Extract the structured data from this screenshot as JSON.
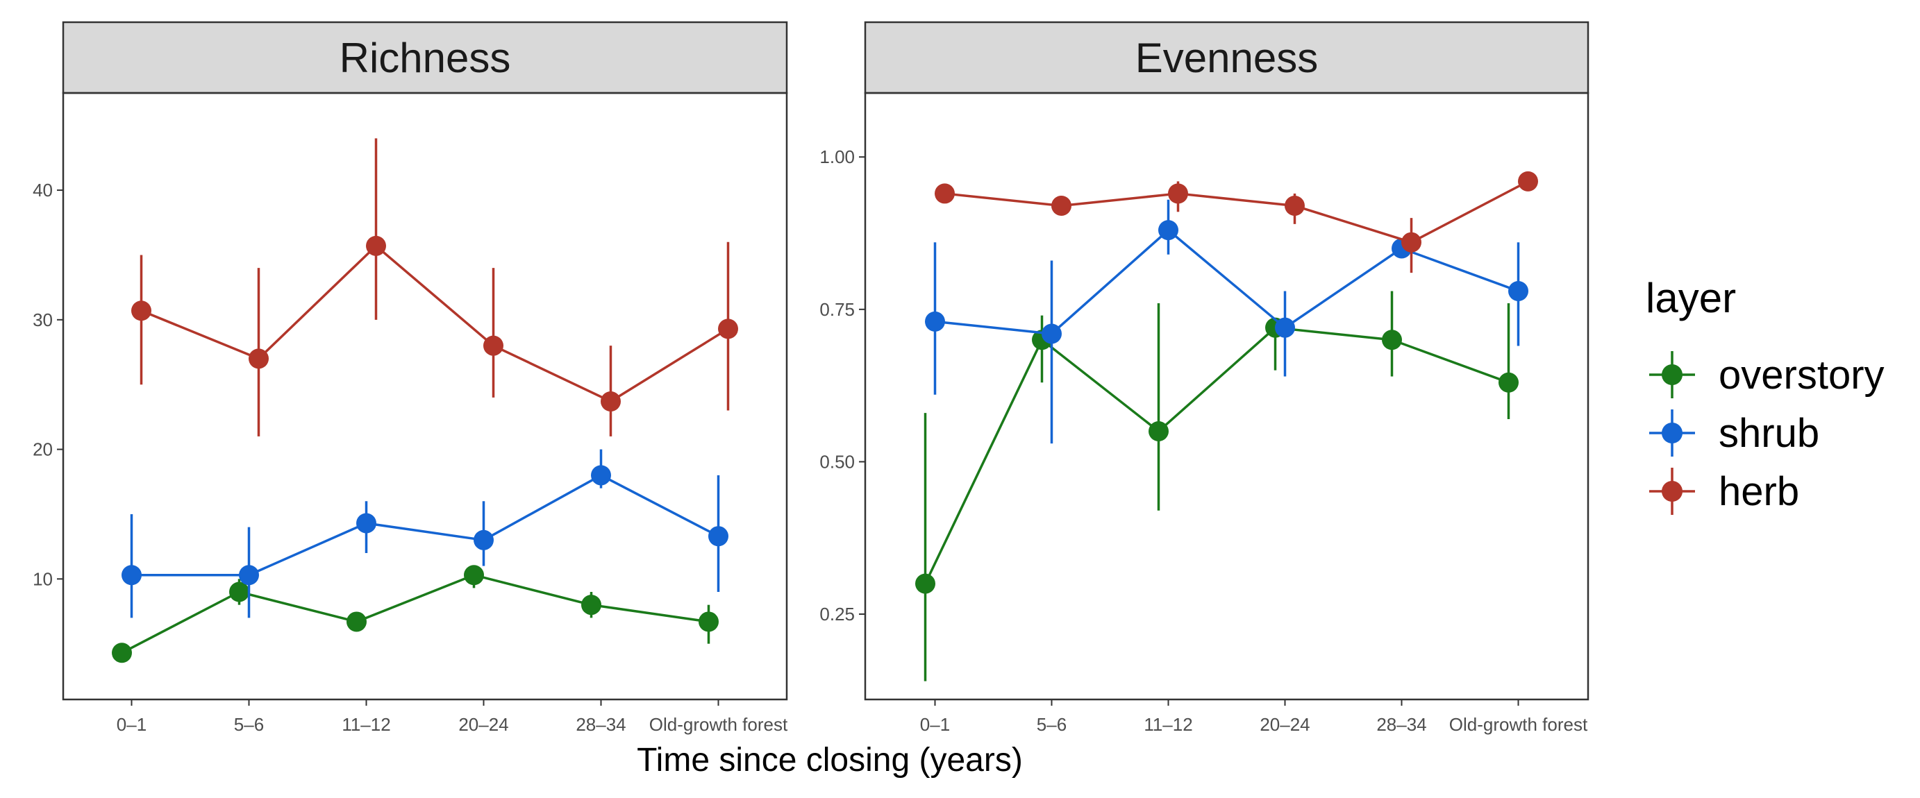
{
  "chart_data": {
    "type": "line",
    "xlabel": "Time since closing (years)",
    "categories": [
      "0–1",
      "5–6",
      "11–12",
      "20–24",
      "28–34",
      "Old-growth forest"
    ],
    "legend": {
      "title": "layer",
      "position": "right",
      "entries": [
        "overstory",
        "shrub",
        "herb"
      ]
    },
    "colors": {
      "overstory": "#1a7a1a",
      "shrub": "#1464d2",
      "herb": "#b2362a",
      "strip_bg": "#d9d9d9",
      "tick": "#333333"
    },
    "panels": [
      {
        "title": "Richness",
        "ylim": [
          0.7,
          47.5
        ],
        "yticks": [
          10,
          20,
          30,
          40
        ],
        "ytick_labels": [
          "10",
          "20",
          "30",
          "40"
        ],
        "series": [
          {
            "name": "overstory",
            "values": [
              4.3,
              9.0,
              6.7,
              10.3,
              8.0,
              6.7
            ],
            "lower": [
              4.3,
              8.0,
              6.7,
              9.3,
              7.0,
              5.0
            ],
            "upper": [
              4.3,
              10.0,
              6.7,
              11.0,
              9.0,
              8.0
            ]
          },
          {
            "name": "shrub",
            "values": [
              10.3,
              10.3,
              14.3,
              13.0,
              18.0,
              13.3
            ],
            "lower": [
              7.0,
              7.0,
              12.0,
              11.0,
              17.0,
              9.0
            ],
            "upper": [
              15.0,
              14.0,
              16.0,
              16.0,
              20.0,
              18.0
            ]
          },
          {
            "name": "herb",
            "values": [
              30.7,
              27.0,
              35.7,
              28.0,
              23.7,
              29.3
            ],
            "lower": [
              25.0,
              21.0,
              30.0,
              24.0,
              21.0,
              23.0
            ],
            "upper": [
              35.0,
              34.0,
              44.0,
              34.0,
              28.0,
              36.0
            ]
          }
        ]
      },
      {
        "title": "Evenness",
        "ylim": [
          0.11,
          1.105
        ],
        "yticks": [
          0.25,
          0.5,
          0.75,
          1.0
        ],
        "ytick_labels": [
          "0.25",
          "0.50",
          "0.75",
          "1.00"
        ],
        "series": [
          {
            "name": "overstory",
            "values": [
              0.3,
              0.7,
              0.55,
              0.72,
              0.7,
              0.63
            ],
            "lower": [
              0.14,
              0.63,
              0.42,
              0.65,
              0.64,
              0.57
            ],
            "upper": [
              0.58,
              0.74,
              0.76,
              0.73,
              0.78,
              0.76
            ]
          },
          {
            "name": "shrub",
            "values": [
              0.73,
              0.71,
              0.88,
              0.72,
              0.85,
              0.78
            ],
            "lower": [
              0.61,
              0.53,
              0.84,
              0.64,
              0.84,
              0.69
            ],
            "upper": [
              0.86,
              0.83,
              0.93,
              0.78,
              0.86,
              0.86
            ]
          },
          {
            "name": "herb",
            "values": [
              0.94,
              0.92,
              0.94,
              0.92,
              0.86,
              0.96
            ],
            "lower": [
              0.93,
              0.91,
              0.91,
              0.89,
              0.81,
              0.95
            ],
            "upper": [
              0.95,
              0.93,
              0.96,
              0.94,
              0.9,
              0.96
            ]
          }
        ]
      }
    ]
  }
}
